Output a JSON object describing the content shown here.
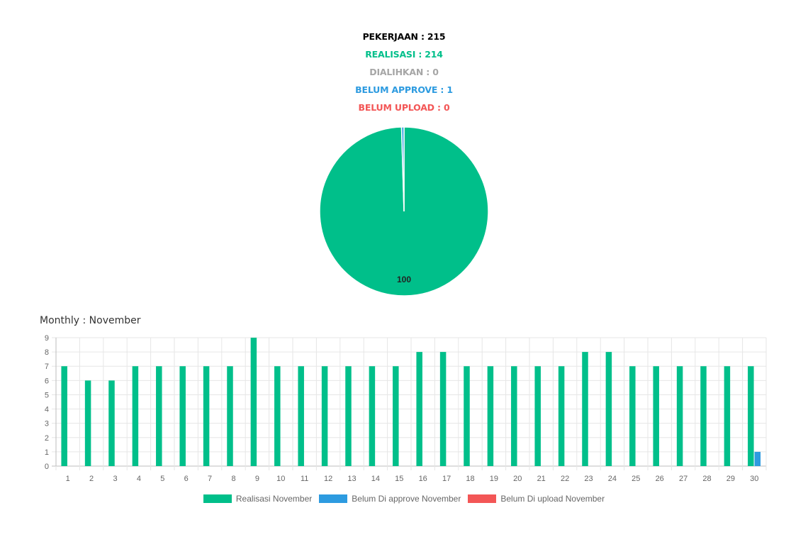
{
  "summary": {
    "pekerjaan": "PEKERJAAN : 215",
    "realisasi": "REALISASI : 214",
    "dialihkan": "DIALIHKAN : 0",
    "belum_approve": "BELUM APPROVE : 1",
    "belum_upload": "BELUM UPLOAD : 0"
  },
  "colors": {
    "pekerjaan": "#000000",
    "realisasi": "#00bf8a",
    "dialihkan": "#a6a6a6",
    "belum_approve": "#2d9be0",
    "belum_upload": "#f35656"
  },
  "chart_data": [
    {
      "type": "pie",
      "slices": [
        {
          "value": 214,
          "color": "#00bf8a"
        },
        {
          "value": 1,
          "color": "#2d9be0"
        }
      ],
      "data_label": "100"
    },
    {
      "type": "bar",
      "title": "Monthly : November",
      "categories": [
        "1",
        "2",
        "3",
        "4",
        "5",
        "6",
        "7",
        "8",
        "9",
        "10",
        "11",
        "12",
        "13",
        "14",
        "15",
        "16",
        "17",
        "18",
        "19",
        "20",
        "21",
        "22",
        "23",
        "24",
        "25",
        "26",
        "27",
        "28",
        "29",
        "30"
      ],
      "ylim": [
        0,
        9
      ],
      "yticks": [
        "0",
        "1",
        "2",
        "3",
        "4",
        "5",
        "6",
        "7",
        "8",
        "9"
      ],
      "grid": true,
      "legend_position": "bottom",
      "series": [
        {
          "name": "Realisasi November",
          "color": "#00bf8a",
          "values": [
            7,
            6,
            6,
            7,
            7,
            7,
            7,
            7,
            9,
            7,
            7,
            7,
            7,
            7,
            7,
            8,
            8,
            7,
            7,
            7,
            7,
            7,
            8,
            8,
            7,
            7,
            7,
            7,
            7,
            7
          ]
        },
        {
          "name": "Belum Di approve November",
          "color": "#2d9be0",
          "values": [
            0,
            0,
            0,
            0,
            0,
            0,
            0,
            0,
            0,
            0,
            0,
            0,
            0,
            0,
            0,
            0,
            0,
            0,
            0,
            0,
            0,
            0,
            0,
            0,
            0,
            0,
            0,
            0,
            0,
            1
          ]
        },
        {
          "name": "Belum Di upload November",
          "color": "#f35656",
          "values": [
            0,
            0,
            0,
            0,
            0,
            0,
            0,
            0,
            0,
            0,
            0,
            0,
            0,
            0,
            0,
            0,
            0,
            0,
            0,
            0,
            0,
            0,
            0,
            0,
            0,
            0,
            0,
            0,
            0,
            0
          ]
        }
      ]
    }
  ]
}
